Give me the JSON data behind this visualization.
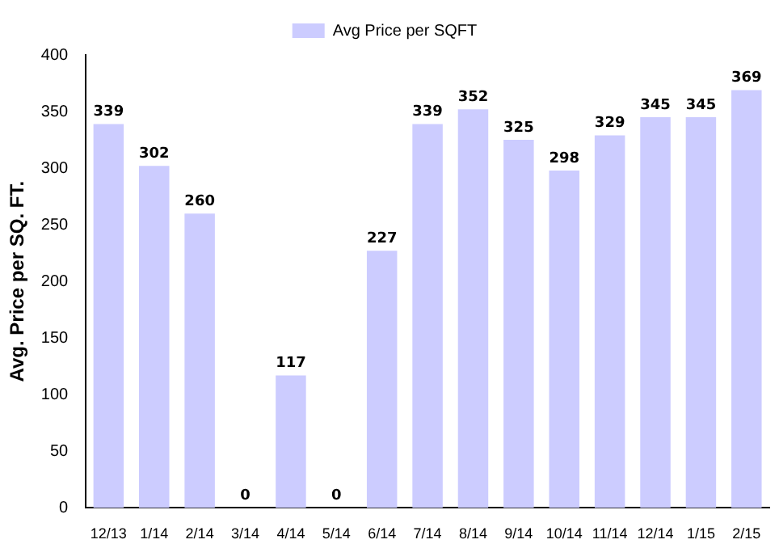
{
  "chart_data": {
    "type": "bar",
    "ylabel": "Avg. Price per SQ. FT.",
    "categories": [
      "12/13",
      "1/14",
      "2/14",
      "3/14",
      "4/14",
      "5/14",
      "6/14",
      "7/14",
      "8/14",
      "9/14",
      "10/14",
      "11/14",
      "12/14",
      "1/15",
      "2/15"
    ],
    "series": [
      {
        "name": "Avg Price per SQFT",
        "color": "#ccccff",
        "values": [
          339,
          302,
          260,
          0,
          117,
          0,
          227,
          339,
          352,
          325,
          298,
          329,
          345,
          345,
          369
        ]
      }
    ],
    "ylim": [
      0,
      400
    ],
    "yticks": [
      0,
      50,
      100,
      150,
      200,
      250,
      300,
      350,
      400
    ],
    "grid": false,
    "legend": "top",
    "data_labels": true
  }
}
